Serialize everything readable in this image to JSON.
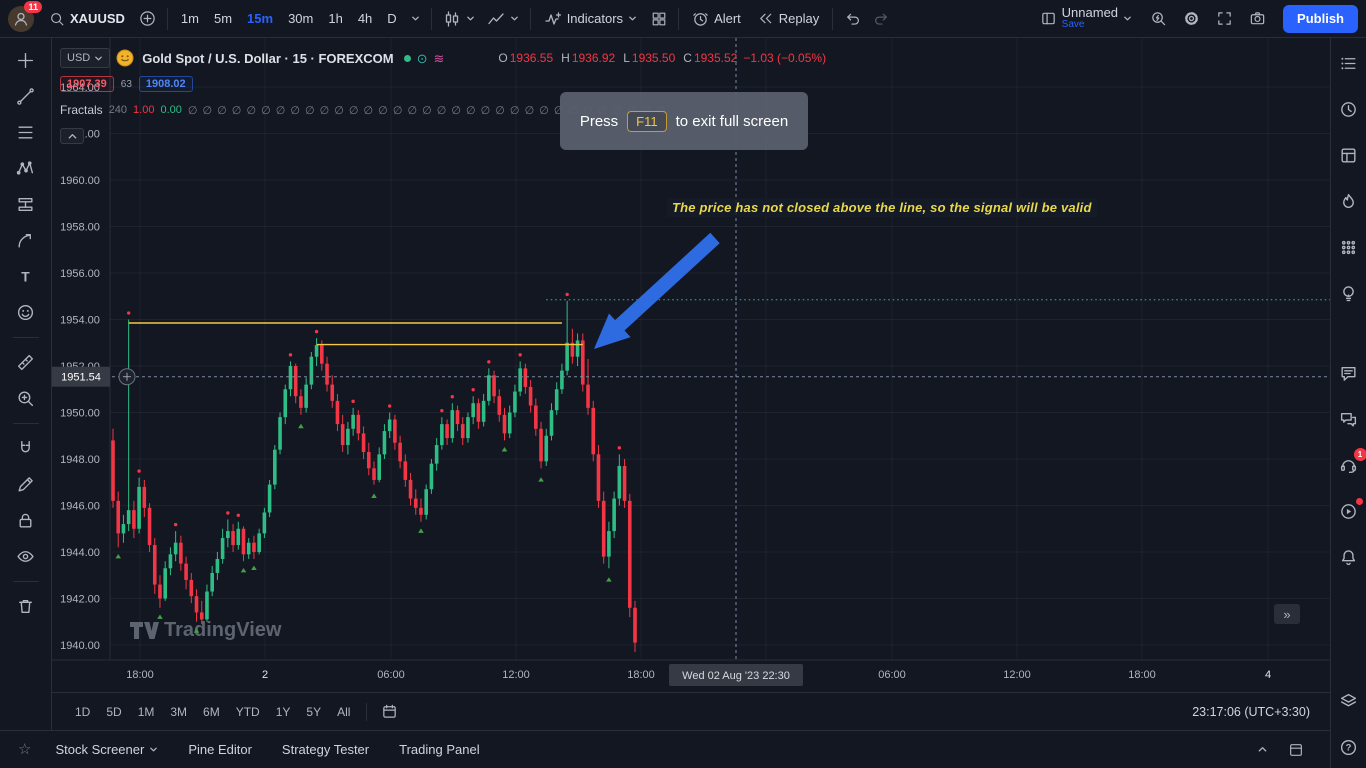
{
  "colors": {
    "bg": "#131722",
    "border": "#2a2e39",
    "text": "#d1d4dc",
    "muted": "#787b86",
    "accent": "#2962ff",
    "up": "#2ebd85",
    "down": "#f23645",
    "yellow": "#f5c842",
    "dotted_green": "#2ebd85",
    "crosshair": "#7e8aa0",
    "marker_down": "#43a047",
    "annotation_text": "#e8d84a",
    "arrow": "#2f6be0"
  },
  "icons": {
    "star": "☆",
    "status1": "⊙",
    "status2": "≋",
    "double_chevron": "»"
  },
  "topbar": {
    "badge": "11",
    "symbol": "XAUUSD",
    "timeframes": [
      "1m",
      "5m",
      "15m",
      "30m",
      "1h",
      "4h",
      "D"
    ],
    "active_timeframe": "15m",
    "indicators": "Indicators",
    "alert": "Alert",
    "replay": "Replay",
    "layout_name": "Unnamed",
    "save": "Save",
    "publish": "Publish"
  },
  "legend": {
    "currency": "USD",
    "title": "Gold Spot / U.S. Dollar · 15 · FOREXCOM",
    "ohlc": [
      {
        "k": "O",
        "v": "1936.55"
      },
      {
        "k": "H",
        "v": "1936.92"
      },
      {
        "k": "L",
        "v": "1935.50"
      },
      {
        "k": "C",
        "v": "1935.52"
      }
    ],
    "change": "−1.03 (−0.05%)",
    "low_box": "1907.39",
    "mid_value": "63",
    "high_box": "1908.02",
    "indicator": {
      "name": "Fractals",
      "param": "240",
      "up": "1.00",
      "down": "0.00",
      "na_row": "∅ ∅ ∅ ∅ ∅ ∅ ∅ ∅ ∅ ∅ ∅ ∅ ∅ ∅ ∅ ∅ ∅ ∅ ∅ ∅ ∅ ∅ ∅ ∅ ∅ ∅ ∅ ∅ ∅ ∅ ∅ ∅ ∅"
    }
  },
  "overlay": {
    "press": "Press",
    "key": "F11",
    "rest": "to exit full screen"
  },
  "annotation": {
    "text": "The price has not closed above the line, so the signal will be valid"
  },
  "watermark": "TradingView",
  "ranges": [
    "1D",
    "5D",
    "1M",
    "3M",
    "6M",
    "YTD",
    "1Y",
    "5Y",
    "All"
  ],
  "clock": "23:17:06 (UTC+3:30)",
  "tabs": [
    "Stock Screener",
    "Pine Editor",
    "Strategy Tester",
    "Trading Panel"
  ],
  "left_toolbar": [
    "crosshair",
    "trendline",
    "fib",
    "xabcd",
    "position",
    "forecast",
    "text",
    "emoji",
    "sep",
    "ruler",
    "zoom",
    "sep",
    "magnet",
    "draw",
    "lock",
    "eye",
    "sep",
    "trash"
  ],
  "right_toolbar": {
    "items": [
      {
        "icon": "watchlist"
      },
      {
        "icon": "alerts-clock"
      },
      {
        "icon": "templates"
      },
      {
        "icon": "hotlists"
      },
      {
        "icon": "calendar-dots"
      },
      {
        "icon": "ideas"
      },
      {
        "gap": true
      },
      {
        "icon": "chat"
      },
      {
        "icon": "conversations"
      },
      {
        "icon": "support",
        "badge": "1"
      },
      {
        "icon": "streams",
        "dot": true
      },
      {
        "icon": "bell"
      }
    ],
    "bottom": [
      {
        "icon": "object-tree"
      },
      {
        "icon": "help"
      }
    ]
  },
  "chart_data": {
    "type": "candlestick",
    "symbol": "XAUUSD",
    "interval": "15m",
    "price_ticks": [
      1964,
      1962,
      1960,
      1958,
      1956,
      1954,
      1952,
      1950,
      1948,
      1946,
      1944,
      1942,
      1940
    ],
    "visible_price_range": [
      1939.5,
      1965.3
    ],
    "time_ticks": [
      "18:00",
      "2",
      "06:00",
      "12:00",
      "18:00",
      "06:00",
      "12:00",
      "18:00",
      "4"
    ],
    "crosshair": {
      "price": 1951.54,
      "price_label": "1951.54",
      "time_label": "Wed 02 Aug '23   22:30"
    },
    "horizontal_lines": [
      {
        "style": "solid",
        "color": "yellow",
        "price": 1953.85,
        "from_bar": 3,
        "to_bar": 86
      },
      {
        "style": "solid",
        "color": "yellow",
        "price": 1952.92,
        "from_bar": 39,
        "to_bar": 90
      },
      {
        "style": "dotted",
        "color": "dotted_green",
        "price": 1954.85,
        "from_bar": 83,
        "to_bar": -1
      }
    ],
    "candles": [
      [
        1948.8,
        1949.3,
        1945.9,
        1946.2
      ],
      [
        1946.2,
        1946.6,
        1944.2,
        1944.8
      ],
      [
        1944.8,
        1945.6,
        1944.4,
        1945.2
      ],
      [
        1945.2,
        1954.0,
        1944.9,
        1945.8
      ],
      [
        1945.8,
        1946.2,
        1944.6,
        1945.0
      ],
      [
        1945.0,
        1947.2,
        1944.8,
        1946.8
      ],
      [
        1946.8,
        1947.1,
        1945.5,
        1945.9
      ],
      [
        1945.9,
        1946.1,
        1944.0,
        1944.3
      ],
      [
        1944.3,
        1944.6,
        1942.2,
        1942.6
      ],
      [
        1942.6,
        1943.0,
        1941.6,
        1942.0
      ],
      [
        1942.0,
        1943.6,
        1941.9,
        1943.3
      ],
      [
        1943.3,
        1944.2,
        1943.0,
        1943.9
      ],
      [
        1943.9,
        1944.9,
        1943.6,
        1944.4
      ],
      [
        1944.4,
        1944.7,
        1943.2,
        1943.5
      ],
      [
        1943.5,
        1943.8,
        1942.4,
        1942.8
      ],
      [
        1942.8,
        1943.1,
        1941.8,
        1942.1
      ],
      [
        1942.1,
        1942.4,
        1941.0,
        1941.4
      ],
      [
        1941.4,
        1941.9,
        1940.9,
        1941.1
      ],
      [
        1941.1,
        1942.6,
        1941.0,
        1942.3
      ],
      [
        1942.3,
        1943.4,
        1942.1,
        1943.1
      ],
      [
        1943.1,
        1944.0,
        1942.8,
        1943.7
      ],
      [
        1943.7,
        1945.0,
        1943.5,
        1944.6
      ],
      [
        1944.6,
        1945.4,
        1944.2,
        1944.9
      ],
      [
        1944.9,
        1945.2,
        1944.0,
        1944.3
      ],
      [
        1944.3,
        1945.3,
        1944.1,
        1945.0
      ],
      [
        1945.0,
        1945.1,
        1943.6,
        1943.9
      ],
      [
        1943.9,
        1944.6,
        1943.7,
        1944.4
      ],
      [
        1944.4,
        1944.7,
        1943.7,
        1944.0
      ],
      [
        1944.0,
        1945.0,
        1943.9,
        1944.8
      ],
      [
        1944.8,
        1945.9,
        1944.6,
        1945.7
      ],
      [
        1945.7,
        1947.1,
        1945.5,
        1946.9
      ],
      [
        1946.9,
        1948.6,
        1946.7,
        1948.4
      ],
      [
        1948.4,
        1950.0,
        1948.2,
        1949.8
      ],
      [
        1949.8,
        1951.2,
        1949.5,
        1951.0
      ],
      [
        1951.0,
        1952.2,
        1950.7,
        1952.0
      ],
      [
        1952.0,
        1952.1,
        1950.4,
        1950.7
      ],
      [
        1950.7,
        1951.0,
        1949.9,
        1950.2
      ],
      [
        1950.2,
        1951.5,
        1950.0,
        1951.2
      ],
      [
        1951.2,
        1952.6,
        1951.0,
        1952.4
      ],
      [
        1952.4,
        1953.2,
        1952.0,
        1952.9
      ],
      [
        1952.9,
        1953.1,
        1951.8,
        1952.1
      ],
      [
        1952.1,
        1952.4,
        1950.9,
        1951.2
      ],
      [
        1951.2,
        1951.6,
        1950.2,
        1950.5
      ],
      [
        1950.5,
        1950.8,
        1949.2,
        1949.5
      ],
      [
        1949.5,
        1949.9,
        1948.3,
        1948.6
      ],
      [
        1948.6,
        1949.6,
        1948.2,
        1949.3
      ],
      [
        1949.3,
        1950.2,
        1949.0,
        1949.9
      ],
      [
        1949.9,
        1950.1,
        1948.8,
        1949.1
      ],
      [
        1949.1,
        1949.4,
        1948.0,
        1948.3
      ],
      [
        1948.3,
        1948.7,
        1947.3,
        1947.6
      ],
      [
        1947.6,
        1947.9,
        1946.9,
        1947.1
      ],
      [
        1947.1,
        1948.5,
        1947.0,
        1948.2
      ],
      [
        1948.2,
        1949.5,
        1948.0,
        1949.2
      ],
      [
        1949.2,
        1950.0,
        1948.9,
        1949.7
      ],
      [
        1949.7,
        1949.9,
        1948.4,
        1948.7
      ],
      [
        1948.7,
        1949.0,
        1947.6,
        1947.9
      ],
      [
        1947.9,
        1948.2,
        1946.8,
        1947.1
      ],
      [
        1947.1,
        1947.4,
        1946.0,
        1946.3
      ],
      [
        1946.3,
        1946.7,
        1945.6,
        1945.9
      ],
      [
        1945.9,
        1946.3,
        1945.3,
        1945.6
      ],
      [
        1945.6,
        1946.9,
        1945.4,
        1946.7
      ],
      [
        1946.7,
        1948.0,
        1946.5,
        1947.8
      ],
      [
        1947.8,
        1948.9,
        1947.5,
        1948.6
      ],
      [
        1948.6,
        1949.8,
        1948.4,
        1949.5
      ],
      [
        1949.5,
        1949.7,
        1948.6,
        1948.9
      ],
      [
        1948.9,
        1950.4,
        1948.7,
        1950.1
      ],
      [
        1950.1,
        1950.3,
        1949.2,
        1949.5
      ],
      [
        1949.5,
        1949.8,
        1948.6,
        1948.9
      ],
      [
        1948.9,
        1950.0,
        1948.7,
        1949.8
      ],
      [
        1949.8,
        1950.7,
        1949.5,
        1950.4
      ],
      [
        1950.4,
        1950.6,
        1949.3,
        1949.6
      ],
      [
        1949.6,
        1950.8,
        1949.4,
        1950.5
      ],
      [
        1950.5,
        1951.9,
        1950.3,
        1951.6
      ],
      [
        1951.6,
        1951.8,
        1950.4,
        1950.7
      ],
      [
        1950.7,
        1951.0,
        1949.6,
        1949.9
      ],
      [
        1949.9,
        1950.2,
        1948.8,
        1949.1
      ],
      [
        1949.1,
        1950.3,
        1948.9,
        1950.0
      ],
      [
        1950.0,
        1951.2,
        1949.8,
        1950.9
      ],
      [
        1950.9,
        1952.2,
        1950.7,
        1951.9
      ],
      [
        1951.9,
        1952.1,
        1950.8,
        1951.1
      ],
      [
        1951.1,
        1951.4,
        1950.0,
        1950.3
      ],
      [
        1950.3,
        1950.6,
        1949.0,
        1949.3
      ],
      [
        1949.3,
        1949.6,
        1947.6,
        1947.9
      ],
      [
        1947.9,
        1949.3,
        1947.7,
        1949.0
      ],
      [
        1949.0,
        1950.4,
        1948.8,
        1950.1
      ],
      [
        1950.1,
        1951.3,
        1949.9,
        1951.0
      ],
      [
        1951.0,
        1952.1,
        1950.8,
        1951.8
      ],
      [
        1951.8,
        1954.8,
        1951.6,
        1953.0
      ],
      [
        1953.0,
        1953.6,
        1952.1,
        1952.4
      ],
      [
        1952.4,
        1953.4,
        1952.0,
        1953.1
      ],
      [
        1953.1,
        1953.4,
        1950.9,
        1951.2
      ],
      [
        1951.2,
        1952.3,
        1949.9,
        1950.2
      ],
      [
        1950.2,
        1950.5,
        1947.9,
        1948.2
      ],
      [
        1948.2,
        1948.6,
        1945.9,
        1946.2
      ],
      [
        1946.2,
        1946.6,
        1943.5,
        1943.8
      ],
      [
        1943.8,
        1945.3,
        1943.3,
        1944.9
      ],
      [
        1944.9,
        1946.6,
        1944.6,
        1946.3
      ],
      [
        1946.3,
        1948.2,
        1946.0,
        1947.7
      ],
      [
        1947.7,
        1948.0,
        1945.9,
        1946.2
      ],
      [
        1946.2,
        1946.5,
        1941.2,
        1941.6
      ],
      [
        1941.6,
        1941.9,
        1939.7,
        1940.1
      ]
    ],
    "fractal_up": [
      [
        3,
        1954.15
      ],
      [
        5,
        1947.35
      ],
      [
        12,
        1945.05
      ],
      [
        22,
        1945.55
      ],
      [
        24,
        1945.45
      ],
      [
        34,
        1952.35
      ],
      [
        39,
        1953.35
      ],
      [
        46,
        1950.35
      ],
      [
        53,
        1950.15
      ],
      [
        63,
        1949.95
      ],
      [
        65,
        1950.55
      ],
      [
        69,
        1950.85
      ],
      [
        72,
        1952.05
      ],
      [
        78,
        1952.35
      ],
      [
        87,
        1954.95
      ],
      [
        97,
        1948.35
      ]
    ],
    "fractal_down": [
      [
        1,
        1944.0
      ],
      [
        9,
        1941.4
      ],
      [
        16,
        1940.8
      ],
      [
        25,
        1943.4
      ],
      [
        27,
        1943.5
      ],
      [
        36,
        1949.6
      ],
      [
        50,
        1946.6
      ],
      [
        59,
        1945.1
      ],
      [
        75,
        1948.6
      ],
      [
        82,
        1947.3
      ],
      [
        95,
        1943.0
      ]
    ]
  }
}
